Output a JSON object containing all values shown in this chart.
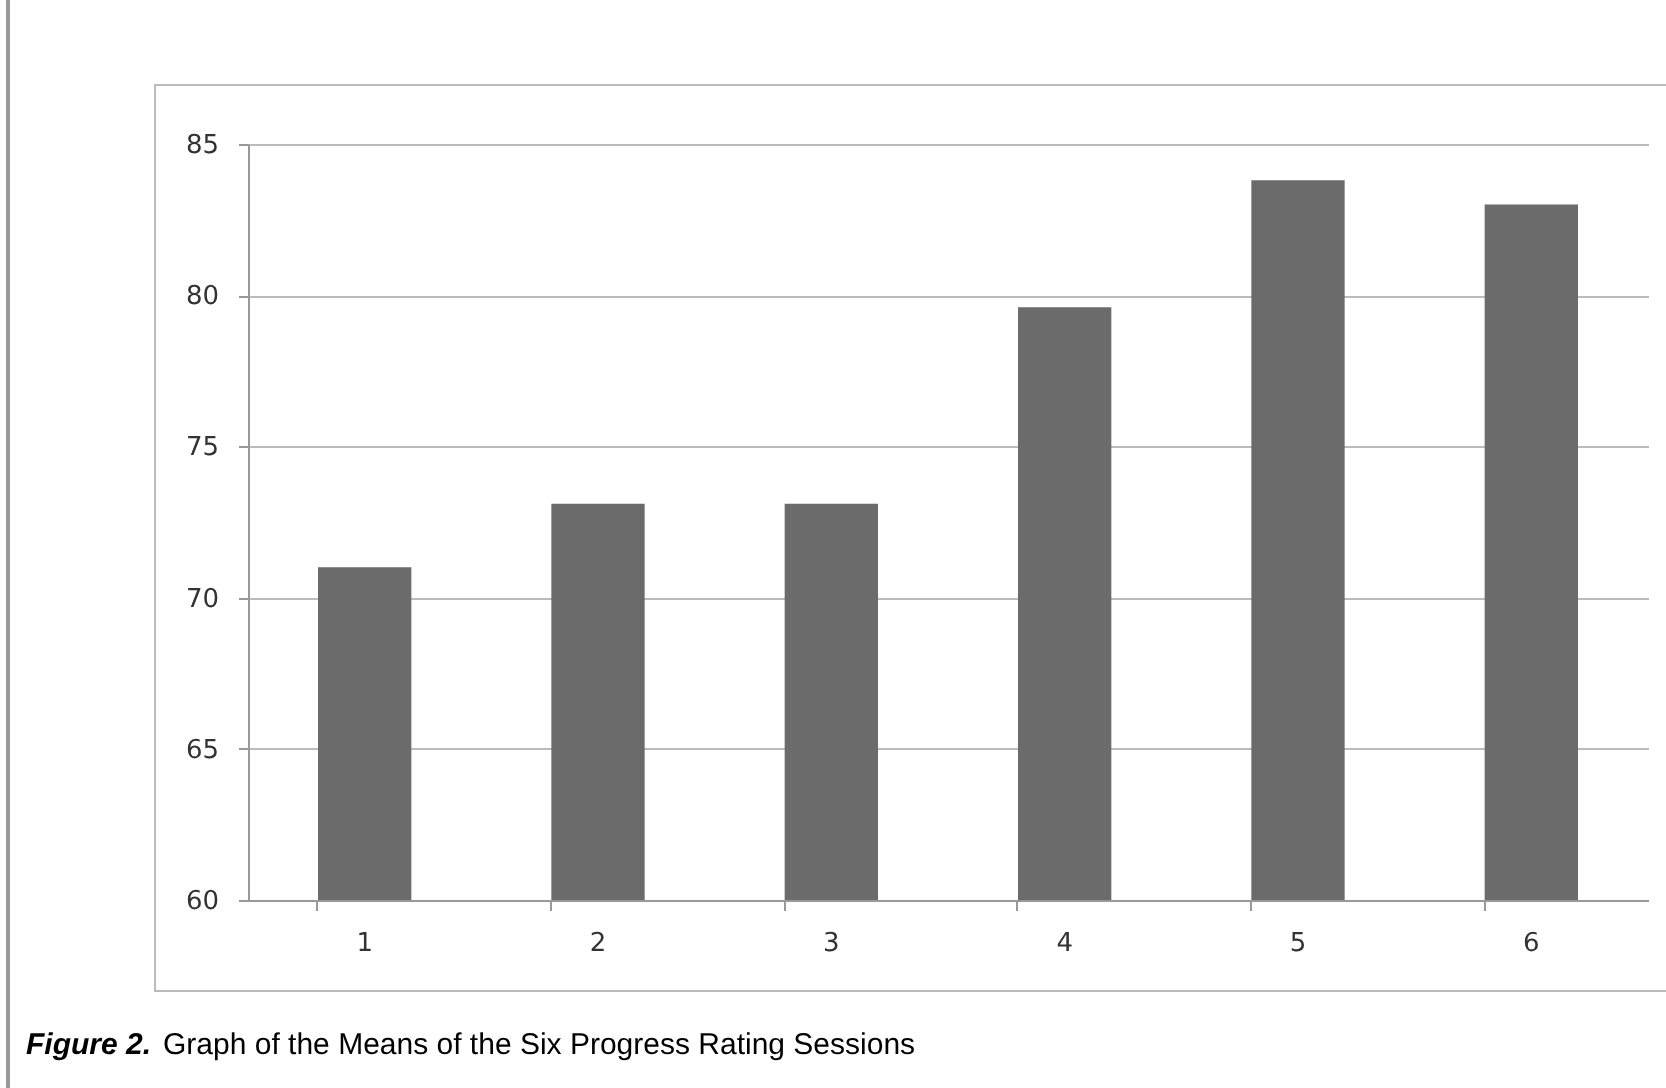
{
  "chart_data": {
    "type": "bar",
    "title": "Figure 2.",
    "subtitle": "Graph of the Means of the Six Progress Rating Sessions",
    "categories": [
      "1",
      "2",
      "3",
      "4",
      "5",
      "6"
    ],
    "values": [
      71.0,
      73.1,
      73.1,
      79.6,
      83.8,
      83.0
    ],
    "color": "#6b6b6b",
    "ylim": [
      60,
      85
    ],
    "yticks": [
      60,
      65,
      70,
      75,
      80,
      85
    ],
    "grid": "y"
  }
}
